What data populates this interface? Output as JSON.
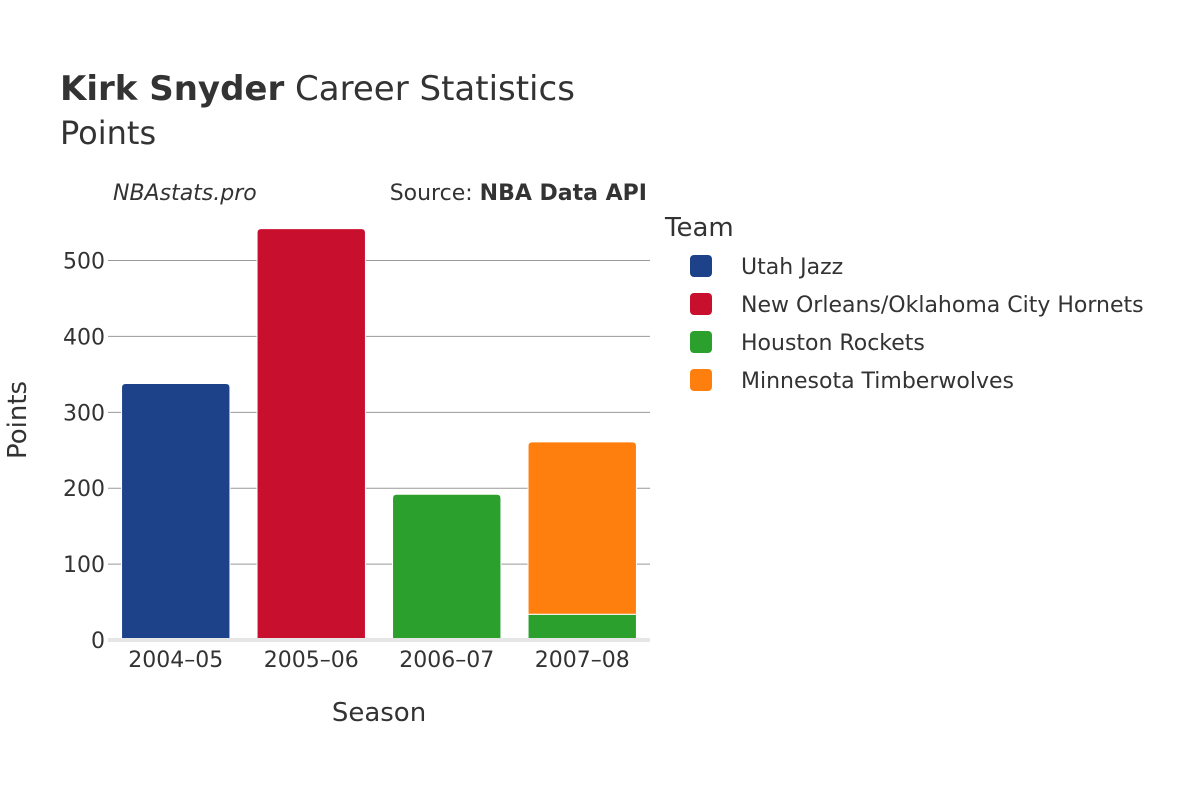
{
  "title": {
    "name": "Kirk Snyder",
    "rest": " Career Statistics",
    "subtitle": "Points"
  },
  "watermark": "NBAstats.pro",
  "source": {
    "prefix": "Source: ",
    "name": "NBA Data API"
  },
  "legend": {
    "title": "Team",
    "items": [
      {
        "label": "Utah Jazz",
        "color": "#1d428a"
      },
      {
        "label": "New Orleans/Oklahoma City Hornets",
        "color": "#c8102e"
      },
      {
        "label": "Houston Rockets",
        "color": "#2ca02c"
      },
      {
        "label": "Minnesota Timberwolves",
        "color": "#ff7f0e"
      }
    ]
  },
  "chart_data": {
    "type": "bar",
    "stacked": true,
    "title": "Kirk Snyder Career Statistics",
    "subtitle": "Points",
    "xlabel": "Season",
    "ylabel": "Points",
    "categories": [
      "2004–05",
      "2005–06",
      "2006–07",
      "2007–08"
    ],
    "ylim": [
      0,
      560
    ],
    "yticks": [
      0,
      100,
      200,
      300,
      400,
      500
    ],
    "grid": true,
    "legend_position": "right",
    "series": [
      {
        "name": "Utah Jazz",
        "color": "#1d428a",
        "values": [
          338,
          0,
          0,
          0
        ]
      },
      {
        "name": "New Orleans/Oklahoma City Hornets",
        "color": "#c8102e",
        "values": [
          0,
          542,
          0,
          0
        ]
      },
      {
        "name": "Houston Rockets",
        "color": "#2ca02c",
        "values": [
          0,
          0,
          192,
          34
        ]
      },
      {
        "name": "Minnesota Timberwolves",
        "color": "#ff7f0e",
        "values": [
          0,
          0,
          0,
          227
        ]
      }
    ]
  }
}
